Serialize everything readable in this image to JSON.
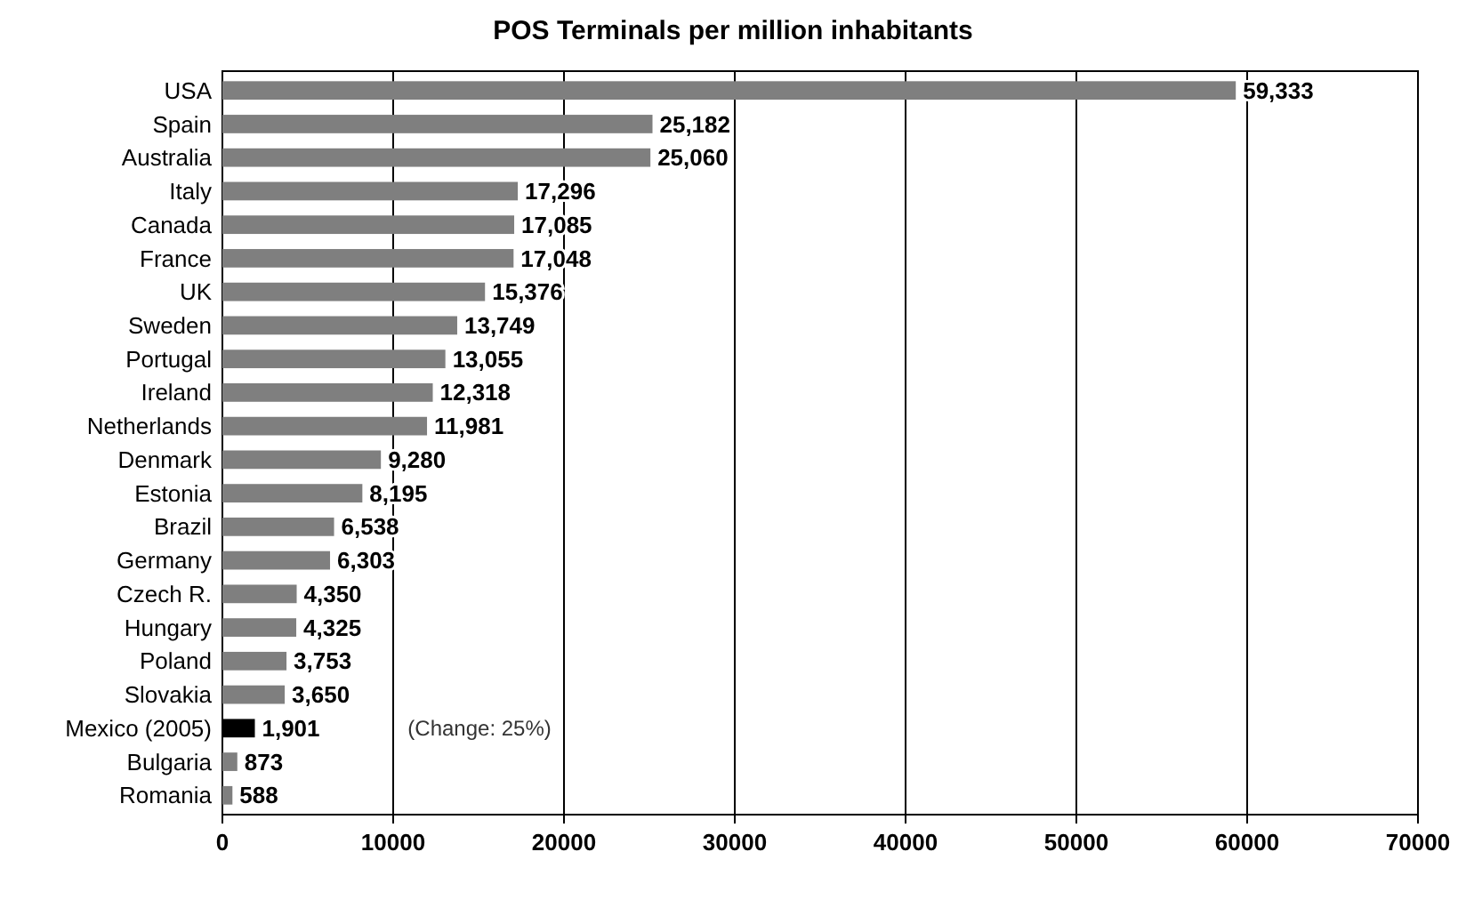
{
  "chart_data": {
    "type": "bar",
    "orientation": "horizontal",
    "title": "POS Terminals per million inhabitants",
    "categories": [
      "USA",
      "Spain",
      "Australia",
      "Italy",
      "Canada",
      "France",
      "UK",
      "Sweden",
      "Portugal",
      "Ireland",
      "Netherlands",
      "Denmark",
      "Estonia",
      "Brazil",
      "Germany",
      "Czech R.",
      "Hungary",
      "Poland",
      "Slovakia",
      "Mexico (2005)",
      "Bulgaria",
      "Romania"
    ],
    "values": [
      59333,
      25182,
      25060,
      17296,
      17085,
      17048,
      15376,
      13749,
      13055,
      12318,
      11981,
      9280,
      8195,
      6538,
      6303,
      4350,
      4325,
      3753,
      3650,
      1901,
      873,
      588
    ],
    "colors": [
      "#7f7f7f",
      "#7f7f7f",
      "#7f7f7f",
      "#7f7f7f",
      "#7f7f7f",
      "#7f7f7f",
      "#7f7f7f",
      "#7f7f7f",
      "#7f7f7f",
      "#7f7f7f",
      "#7f7f7f",
      "#7f7f7f",
      "#7f7f7f",
      "#7f7f7f",
      "#7f7f7f",
      "#7f7f7f",
      "#7f7f7f",
      "#7f7f7f",
      "#7f7f7f",
      "#000000",
      "#7f7f7f",
      "#7f7f7f"
    ],
    "xlim": [
      0,
      70000
    ],
    "xticks": [
      0,
      10000,
      20000,
      30000,
      40000,
      50000,
      60000,
      70000
    ],
    "value_labels": [
      "59,333",
      "25,182",
      "25,060",
      "17,296",
      "17,085",
      "17,048",
      "15,376",
      "13,749",
      "13,055",
      "12,318",
      "11,981",
      "9,280",
      "8,195",
      "6,538",
      "6,303",
      "4,350",
      "4,325",
      "3,753",
      "3,650",
      "1,901",
      "873",
      "588"
    ],
    "grid": "x",
    "annotations": [
      "(Change: 25%)"
    ]
  }
}
